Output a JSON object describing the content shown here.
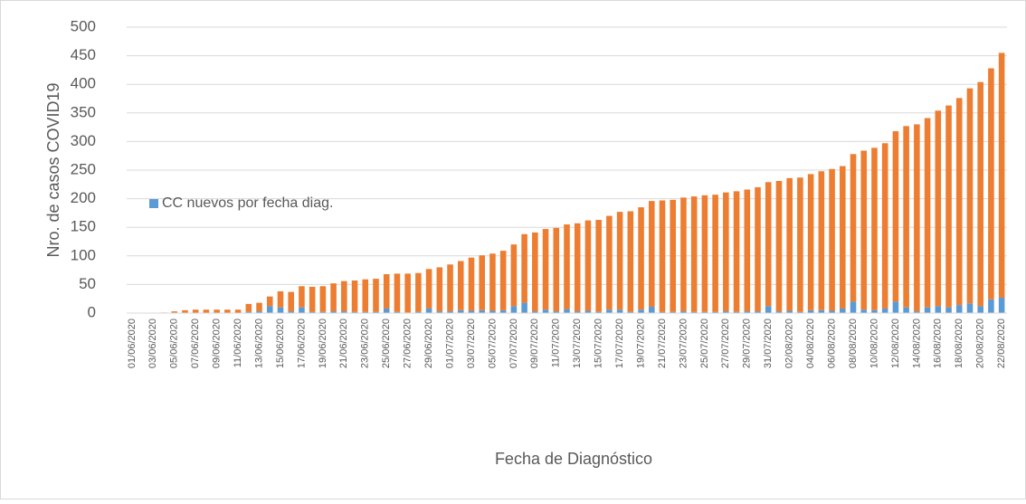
{
  "chart_data": {
    "type": "stacked_bar",
    "y_label": "Nro. de casos COVID19",
    "x_label": "Fecha de Diagnóstico",
    "categories": [
      "01/06/2020",
      null,
      "03/06/2020",
      null,
      "05/06/2020",
      null,
      "07/06/2020",
      null,
      "09/06/2020",
      null,
      "11/06/2020",
      null,
      "13/06/2020",
      null,
      "15/06/2020",
      null,
      "17/06/2020",
      null,
      "19/06/2020",
      null,
      "21/06/2020",
      null,
      "23/06/2020",
      null,
      "25/06/2020",
      null,
      "27/06/2020",
      null,
      "29/06/2020",
      null,
      "01/07/2020",
      null,
      "03/07/2020",
      null,
      "05/07/2020",
      null,
      "07/07/2020",
      null,
      "09/07/2020",
      null,
      "11/07/2020",
      null,
      "13/07/2020",
      null,
      "15/07/2020",
      null,
      "17/07/2020",
      null,
      "19/07/2020",
      null,
      "21/07/2020",
      null,
      "23/07/2020",
      null,
      "25/07/2020",
      null,
      "27/07/2020",
      null,
      "29/07/2020",
      null,
      "31/07/2020",
      null,
      "02/08/2020",
      null,
      "04/08/2020",
      null,
      "06/08/2020",
      null,
      "08/08/2020",
      null,
      "10/08/2020",
      null,
      "12/08/2020",
      null,
      "14/08/2020",
      null,
      "16/08/2020",
      null,
      "18/08/2020",
      null,
      "20/08/2020",
      null,
      "22/08/2020"
    ],
    "series": [
      {
        "name": "CC nuevos por fecha diag.",
        "color": "#5b9bd5",
        "values": [
          0,
          0,
          0,
          0,
          0,
          0,
          0,
          0,
          0,
          0,
          0,
          2,
          3,
          12,
          10,
          3,
          10,
          2,
          2,
          3,
          3,
          2,
          2,
          2,
          8,
          2,
          1,
          2,
          8,
          3,
          3,
          5,
          4,
          5,
          4,
          5,
          12,
          18,
          3,
          6,
          3,
          7,
          3,
          4,
          2,
          6,
          6,
          2,
          6,
          11,
          2,
          2,
          3,
          2,
          2,
          2,
          3,
          2,
          3,
          3,
          12,
          3,
          4,
          2,
          5,
          5,
          4,
          8,
          20,
          6,
          5,
          8,
          20,
          10,
          3,
          10,
          12,
          10,
          14,
          17,
          12,
          24,
          27
        ]
      },
      {
        "color": "#ed7d31",
        "values": [
          0,
          0,
          0,
          1,
          3,
          5,
          6,
          6,
          6,
          6,
          6,
          14,
          15,
          17,
          28,
          34,
          37,
          44,
          45,
          49,
          53,
          55,
          57,
          58,
          60,
          67,
          68,
          68,
          69,
          77,
          82,
          86,
          93,
          96,
          100,
          104,
          108,
          120,
          138,
          141,
          146,
          148,
          154,
          158,
          161,
          164,
          171,
          176,
          179,
          185,
          195,
          196,
          199,
          202,
          204,
          205,
          208,
          211,
          213,
          217,
          217,
          228,
          232,
          235,
          238,
          243,
          248,
          249,
          258,
          278,
          284,
          289,
          298,
          317,
          327,
          331,
          342,
          353,
          362,
          376,
          392,
          404,
          428
        ]
      }
    ],
    "ylim": [
      0,
      500
    ],
    "yticks": [
      0,
      50,
      100,
      150,
      200,
      250,
      300,
      350,
      400,
      450,
      500
    ],
    "grid": true
  }
}
